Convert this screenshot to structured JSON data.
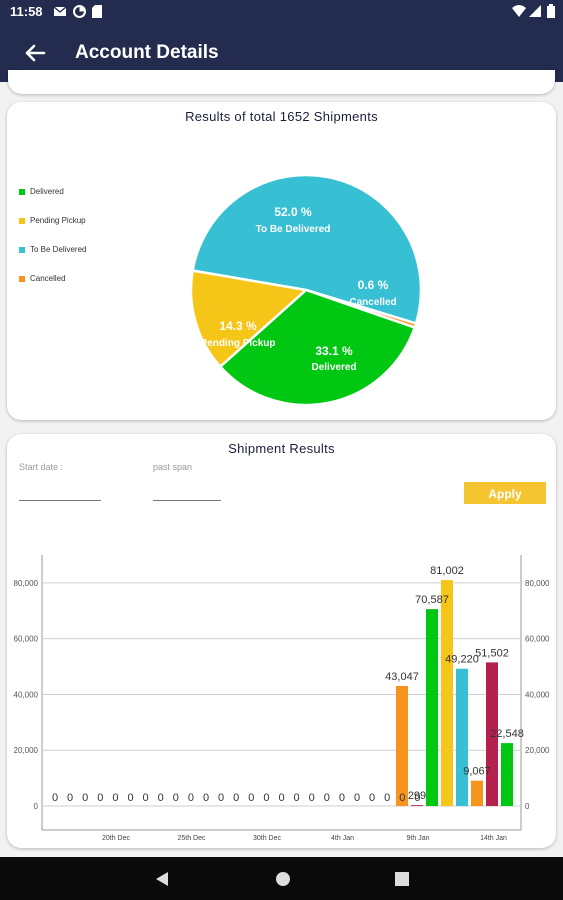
{
  "status": {
    "time": "11:58"
  },
  "appbar": {
    "title": "Account Details"
  },
  "pie": {
    "title": "Results of total 1652 Shipments",
    "legend": [
      "Delivered",
      "Pending Pickup",
      "To Be Delivered",
      "Cancelled"
    ],
    "slice_labels": [
      {
        "pct": "52.0 %",
        "name": "To Be Delivered"
      },
      {
        "pct": "0.6 %",
        "name": "Cancelled"
      },
      {
        "pct": "33.1 %",
        "name": "Delivered"
      },
      {
        "pct": "14.3 %",
        "name": "Pending Pickup"
      }
    ]
  },
  "results": {
    "title": "Shipment Results",
    "start_label": "Start date :",
    "span_label": "past span",
    "apply_label": "Apply"
  },
  "colors": {
    "delivered": "#00c711",
    "pending": "#f5c518",
    "to_be_delivered": "#37bfd4",
    "cancelled": "#f7941d",
    "crimson": "#b5204f",
    "bar": "#232c4f"
  },
  "chart_data": [
    {
      "type": "pie",
      "title": "Results of total 1652 Shipments",
      "categories": [
        "To Be Delivered",
        "Cancelled",
        "Delivered",
        "Pending Pickup"
      ],
      "values": [
        52.0,
        0.6,
        33.1,
        14.3
      ],
      "legend": [
        "Delivered",
        "Pending Pickup",
        "To Be Delivered",
        "Cancelled"
      ],
      "legend_position": "left"
    },
    {
      "type": "bar",
      "title": "Shipment Results",
      "ylim": [
        0,
        90000
      ],
      "yticks": [
        "0",
        "20,000",
        "40,000",
        "60,000",
        "80,000"
      ],
      "ytick_values": [
        0,
        20000,
        40000,
        60000,
        80000
      ],
      "xticks": [
        "20th Dec",
        "25th Dec",
        "30th Dec",
        "4th Jan",
        "9th Jan",
        "14th Jan"
      ],
      "zero_labels": [
        "0",
        "0",
        "0",
        "0",
        "0",
        "0",
        "0",
        "0",
        "0",
        "0",
        "0",
        "0",
        "0",
        "0",
        "0",
        "0",
        "0",
        "0",
        "0",
        "0",
        "0",
        "0",
        "0",
        "0",
        "0"
      ],
      "bars": [
        {
          "value": 43047,
          "label": "43,047",
          "color": "#f7941d"
        },
        {
          "value": 299,
          "label": "299",
          "color": "#b5204f"
        },
        {
          "value": 70587,
          "label": "70,587",
          "color": "#00c711"
        },
        {
          "value": 81002,
          "label": "81,002",
          "color": "#f5c518"
        },
        {
          "value": 49220,
          "label": "49,220",
          "color": "#37bfd4"
        },
        {
          "value": 9067,
          "label": "9,067",
          "color": "#f7941d"
        },
        {
          "value": 51502,
          "label": "51,502",
          "color": "#b5204f"
        },
        {
          "value": 22548,
          "label": "22,548",
          "color": "#00c711"
        }
      ]
    }
  ]
}
